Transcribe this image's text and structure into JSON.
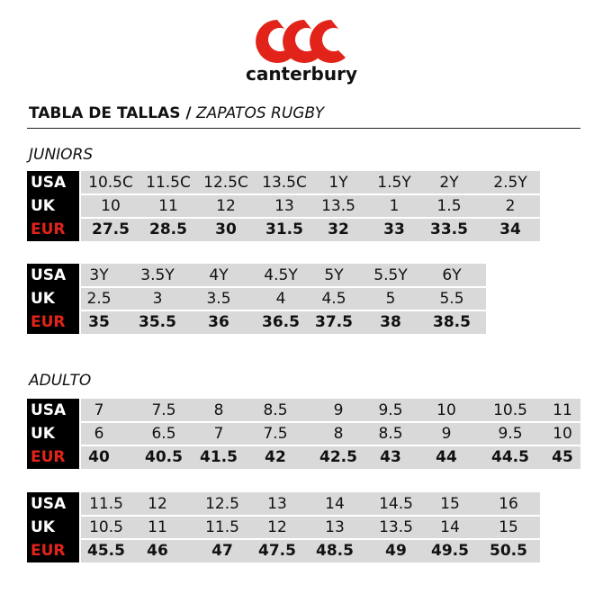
{
  "logo": {
    "brand": "canterbury"
  },
  "header": {
    "title_bold": "TABLA DE TALLAS /",
    "title_italic": "ZAPATOS RUGBY"
  },
  "sections": [
    {
      "title": "JUNIORS",
      "tables": [
        {
          "labels": [
            "USA",
            "UK",
            "EUR"
          ],
          "rows": [
            [
              "10.5C",
              "11.5C",
              "12.5C",
              "13.5C",
              "1Y",
              "1.5Y",
              "2Y",
              "2.5Y"
            ],
            [
              "10",
              "11",
              "12",
              "13",
              "13.5",
              "1",
              "1.5",
              "2"
            ],
            [
              "27.5",
              "28.5",
              "30",
              "31.5",
              "32",
              "33",
              "33.5",
              "34"
            ]
          ]
        },
        {
          "labels": [
            "USA",
            "UK",
            "EUR"
          ],
          "rows": [
            [
              "3Y",
              "3.5Y",
              "4Y",
              "4.5Y",
              "5Y",
              "5.5Y",
              "6Y"
            ],
            [
              "2.5",
              "3",
              "3.5",
              "4",
              "4.5",
              "5",
              "5.5"
            ],
            [
              "35",
              "35.5",
              "36",
              "36.5",
              "37.5",
              "38",
              "38.5"
            ]
          ]
        }
      ]
    },
    {
      "title": "ADULTO",
      "tables": [
        {
          "labels": [
            "USA",
            "UK",
            "EUR"
          ],
          "rows": [
            [
              "7",
              "7.5",
              "8",
              "8.5",
              "9",
              "9.5",
              "10",
              "10.5",
              "11"
            ],
            [
              "6",
              "6.5",
              "7",
              "7.5",
              "8",
              "8.5",
              "9",
              "9.5",
              "10"
            ],
            [
              "40",
              "40.5",
              "41.5",
              "42",
              "42.5",
              "43",
              "44",
              "44.5",
              "45"
            ]
          ]
        },
        {
          "labels": [
            "USA",
            "UK",
            "EUR"
          ],
          "rows": [
            [
              "11.5",
              "12",
              "12.5",
              "13",
              "14",
              "14.5",
              "15",
              "16"
            ],
            [
              "10.5",
              "11",
              "11.5",
              "12",
              "13",
              "13.5",
              "14",
              "15"
            ],
            [
              "45.5",
              "46",
              "47",
              "47.5",
              "48.5",
              "49",
              "49.5",
              "50.5"
            ]
          ]
        }
      ]
    }
  ]
}
